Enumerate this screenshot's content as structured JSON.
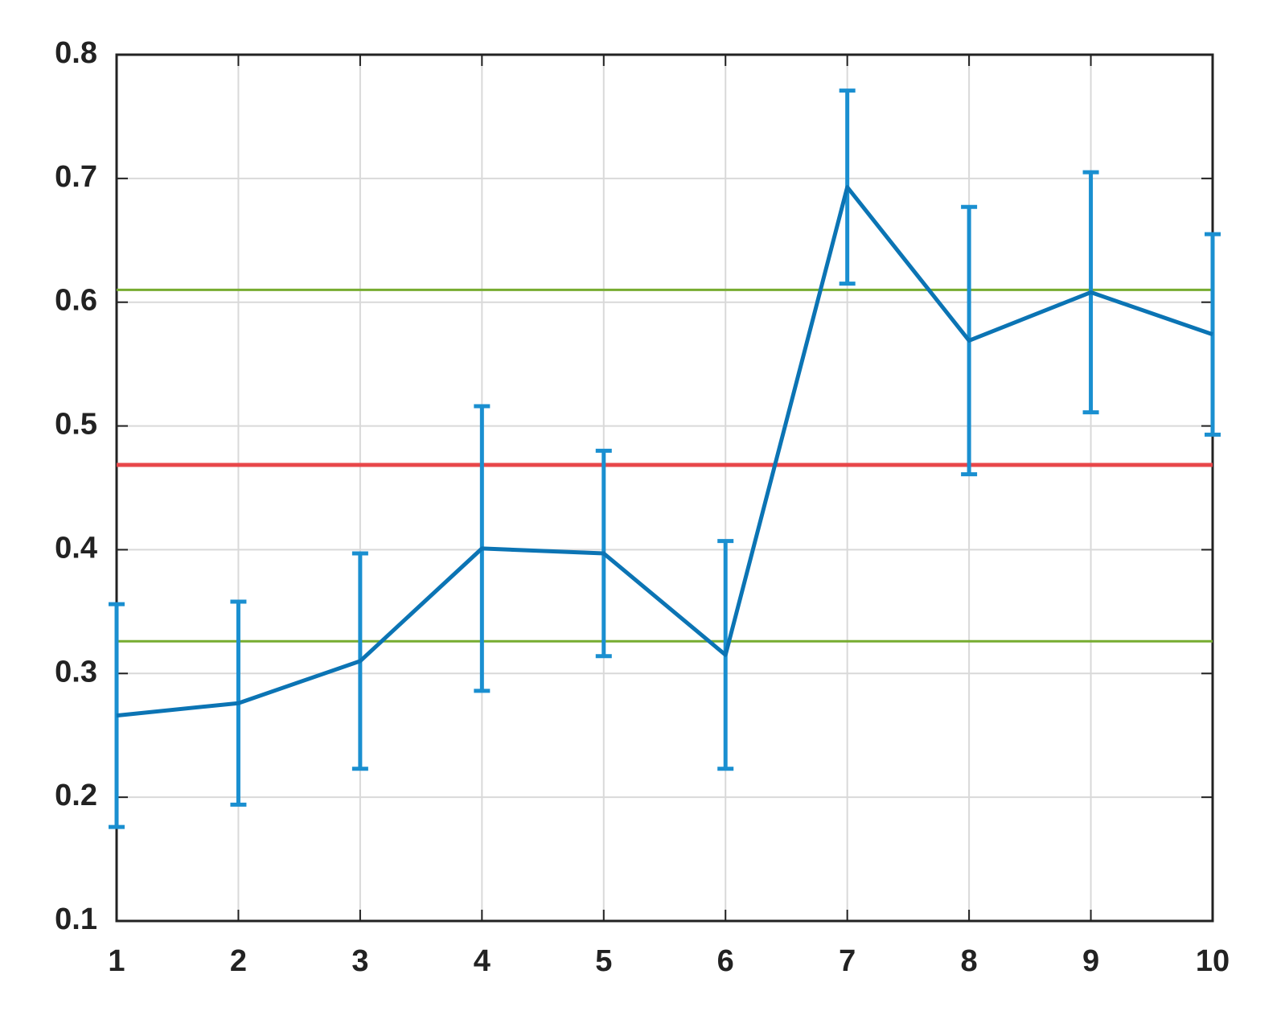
{
  "chart_data": {
    "type": "line",
    "x": [
      1,
      2,
      3,
      4,
      5,
      6,
      7,
      8,
      9,
      10
    ],
    "values": [
      0.266,
      0.276,
      0.31,
      0.401,
      0.397,
      0.315,
      0.693,
      0.569,
      0.608,
      0.574
    ],
    "errors": [
      0.09,
      0.082,
      0.087,
      0.115,
      0.083,
      0.092,
      0.078,
      0.108,
      0.097,
      0.081
    ],
    "color": "#0b74b4",
    "error_color": "#1a8fd0",
    "hlines": [
      {
        "value": 0.4685,
        "color": "#e8474a"
      },
      {
        "value": 0.61,
        "color": "#77ac30"
      },
      {
        "value": 0.326,
        "color": "#77ac30"
      }
    ],
    "xlim": [
      1,
      10
    ],
    "xticks": [
      1,
      2,
      3,
      4,
      5,
      6,
      7,
      8,
      9,
      10
    ],
    "ylim": [
      0.1,
      0.8
    ],
    "yticks": [
      0.1,
      0.2,
      0.3,
      0.4,
      0.5,
      0.6,
      0.7,
      0.8
    ],
    "grid": true
  }
}
